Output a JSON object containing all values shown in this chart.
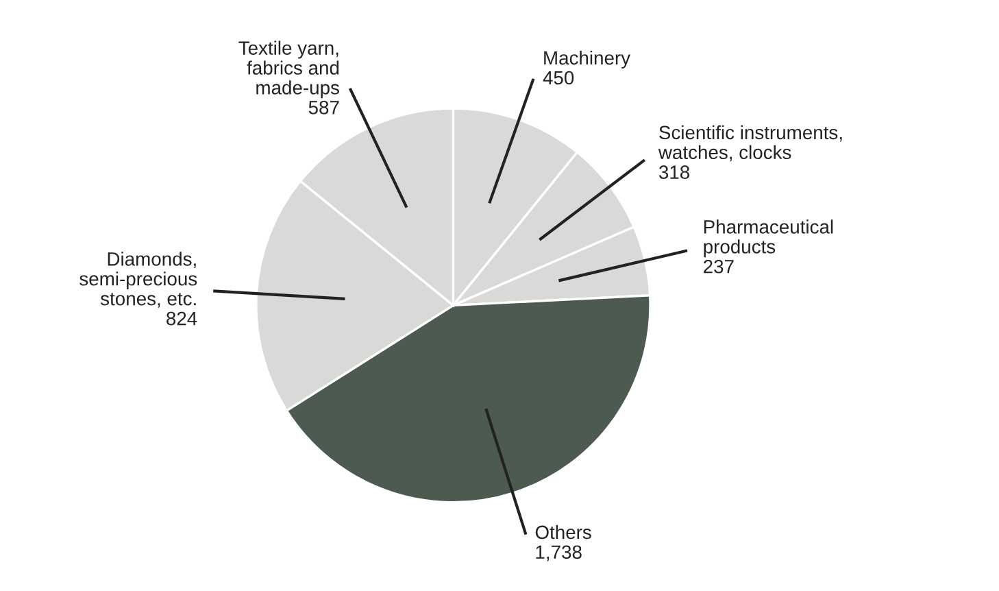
{
  "chart_data": {
    "type": "pie",
    "categories": [
      "Machinery",
      "Scientific instruments,\nwatches, clocks",
      "Pharmaceutical\nproducts",
      "Others",
      "Diamonds,\nsemi-precious\nstones, etc.",
      "Textile yarn,\nfabrics and\nmade-ups"
    ],
    "values": [
      450,
      318,
      237,
      1738,
      824,
      587
    ],
    "value_labels": [
      "450",
      "318",
      "237",
      "1,738",
      "824",
      "587"
    ],
    "colors": [
      "#d9d9d7",
      "#d9d9d7",
      "#d9d9d7",
      "#4d5a50",
      "#d9d9d7",
      "#d9d9d7"
    ]
  }
}
